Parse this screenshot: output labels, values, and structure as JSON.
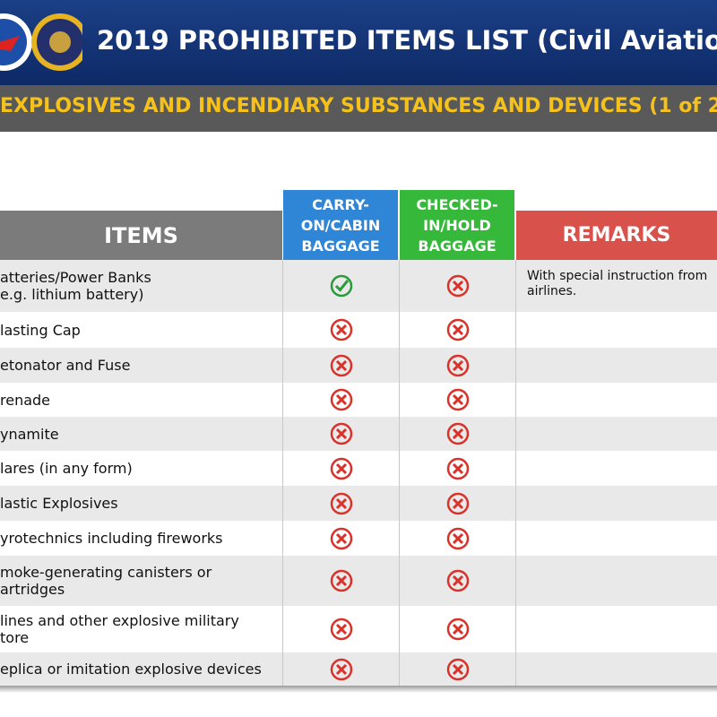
{
  "header": {
    "title": "2019 PROHIBITED ITEMS LIST (Civil Aviatio",
    "subtitle": "EXPLOSIVES AND INCENDIARY SUBSTANCES AND DEVICES (1 of 2"
  },
  "table": {
    "columns": [
      "ITEMS",
      "CARRY-\nON/CABIN\nBAGGAGE",
      "CHECKED-\nIN/HOLD\nBAGGAGE",
      "REMARKS"
    ],
    "rows": [
      {
        "item": "atteries/Power Banks\ne.g. lithium battery)",
        "carry_on": true,
        "checked": false,
        "remarks": "With special instruction from\nairlines."
      },
      {
        "item": "lasting Cap",
        "carry_on": false,
        "checked": false
      },
      {
        "item": "etonator and Fuse",
        "carry_on": false,
        "checked": false
      },
      {
        "item": "renade",
        "carry_on": false,
        "checked": false
      },
      {
        "item": "ynamite",
        "carry_on": false,
        "checked": false
      },
      {
        "item": "lares (in any form)",
        "carry_on": false,
        "checked": false
      },
      {
        "item": "lastic Explosives",
        "carry_on": false,
        "checked": false
      },
      {
        "item": "yrotechnics including  fireworks",
        "carry_on": false,
        "checked": false
      },
      {
        "item": "moke-generating canisters or\nartridges",
        "carry_on": false,
        "checked": false
      },
      {
        "item": "lines and other explosive military\ntore",
        "carry_on": false,
        "checked": false
      },
      {
        "item": "eplica or imitation explosive devices",
        "carry_on": false,
        "checked": false
      }
    ]
  }
}
